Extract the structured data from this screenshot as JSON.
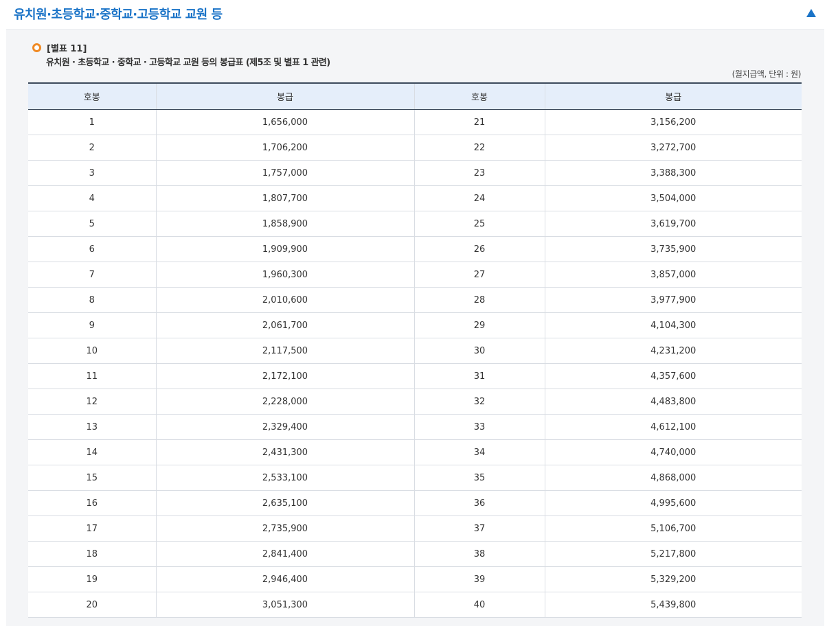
{
  "header": {
    "title": "유치원·초등학교·중학교·고등학교 교원 등",
    "toggle_icon": "triangle-up-icon",
    "accent_color": "#1a73c7"
  },
  "section": {
    "table_label": "[별표 11]",
    "subtitle": "유치원 · 초등학교 · 중학교 · 고등학교 교원 등의 봉급표 (제5조 및 별표 1 관련)",
    "unit_note": "(월지급액, 단위 : 원)",
    "label_icon": "orange-circle-icon"
  },
  "table": {
    "headers": [
      "호봉",
      "봉급",
      "호봉",
      "봉급"
    ],
    "rows": [
      [
        "1",
        "1,656,000",
        "21",
        "3,156,200"
      ],
      [
        "2",
        "1,706,200",
        "22",
        "3,272,700"
      ],
      [
        "3",
        "1,757,000",
        "23",
        "3,388,300"
      ],
      [
        "4",
        "1,807,700",
        "24",
        "3,504,000"
      ],
      [
        "5",
        "1,858,900",
        "25",
        "3,619,700"
      ],
      [
        "6",
        "1,909,900",
        "26",
        "3,735,900"
      ],
      [
        "7",
        "1,960,300",
        "27",
        "3,857,000"
      ],
      [
        "8",
        "2,010,600",
        "28",
        "3,977,900"
      ],
      [
        "9",
        "2,061,700",
        "29",
        "4,104,300"
      ],
      [
        "10",
        "2,117,500",
        "30",
        "4,231,200"
      ],
      [
        "11",
        "2,172,100",
        "31",
        "4,357,600"
      ],
      [
        "12",
        "2,228,000",
        "32",
        "4,483,800"
      ],
      [
        "13",
        "2,329,400",
        "33",
        "4,612,100"
      ],
      [
        "14",
        "2,431,300",
        "34",
        "4,740,000"
      ],
      [
        "15",
        "2,533,100",
        "35",
        "4,868,000"
      ],
      [
        "16",
        "2,635,100",
        "36",
        "4,995,600"
      ],
      [
        "17",
        "2,735,900",
        "37",
        "5,106,700"
      ],
      [
        "18",
        "2,841,400",
        "38",
        "5,217,800"
      ],
      [
        "19",
        "2,946,400",
        "39",
        "5,329,200"
      ],
      [
        "20",
        "3,051,300",
        "40",
        "5,439,800"
      ]
    ]
  }
}
